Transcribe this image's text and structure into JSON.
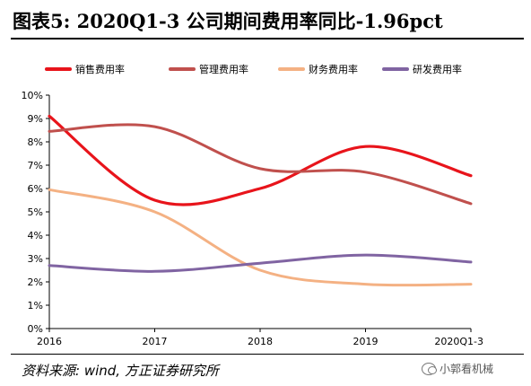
{
  "header": {
    "title": "图表5:   2020Q1-3  公司期间费用率同比-1.96pct"
  },
  "footer": {
    "source": "资料来源: wind, 方正证券研究所",
    "watermark": "小郭看机械"
  },
  "chart_data": {
    "type": "line",
    "title": "",
    "categories": [
      "2016",
      "2017",
      "2018",
      "2019",
      "2020Q1-3"
    ],
    "yticks": [
      "0%",
      "1%",
      "2%",
      "3%",
      "4%",
      "5%",
      "6%",
      "7%",
      "8%",
      "9%",
      "10%"
    ],
    "ylim": [
      0,
      10
    ],
    "legend_position": "top",
    "series": [
      {
        "name": "销售费用率",
        "color": "#e8141b",
        "values": [
          9.1,
          5.5,
          6.0,
          7.8,
          6.55
        ]
      },
      {
        "name": "管理费用率",
        "color": "#c0504d",
        "values": [
          8.45,
          8.65,
          6.85,
          6.7,
          5.35
        ]
      },
      {
        "name": "财务费用率",
        "color": "#f4b183",
        "values": [
          5.95,
          5.0,
          2.5,
          1.9,
          1.9
        ]
      },
      {
        "name": "研发费用率",
        "color": "#8064a2",
        "values": [
          2.7,
          2.45,
          2.8,
          3.15,
          2.85
        ]
      }
    ]
  }
}
